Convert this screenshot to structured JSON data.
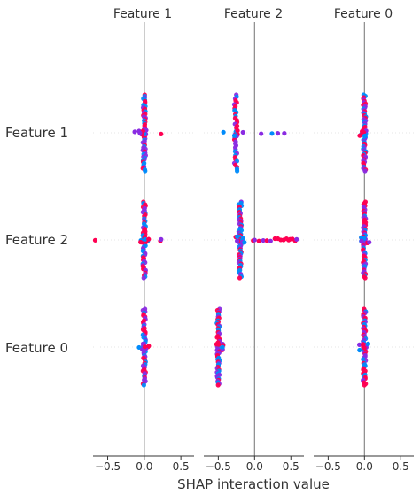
{
  "chart_data": {
    "type": "scatter",
    "title": "",
    "xlabel": "SHAP interaction value",
    "ylabel": "",
    "grid": false,
    "legend": "none",
    "colors": {
      "low": "#008bfb",
      "mid": "#8a2be2",
      "high": "#ff0052",
      "spine": "#888888",
      "text": "#333333"
    },
    "rows": [
      "Feature 1",
      "Feature 2",
      "Feature 0"
    ],
    "panels": [
      {
        "title": "Feature 1",
        "xlim": [
          -0.7,
          0.68
        ],
        "xticks": [
          -0.5,
          0.0,
          0.5
        ],
        "xtick_labels": [
          "−0.5",
          "0.0",
          "0.5"
        ]
      },
      {
        "title": "Feature 2",
        "xlim": [
          -0.7,
          0.68
        ],
        "xticks": [
          -0.5,
          0.0,
          0.5
        ],
        "xtick_labels": [
          "−0.5",
          "0.0",
          "0.5"
        ]
      },
      {
        "title": "Feature 0",
        "xlim": [
          -0.7,
          0.68
        ],
        "xticks": [
          -0.5,
          0.0,
          0.5
        ],
        "xtick_labels": [
          "−0.5",
          "0.0",
          "0.5"
        ]
      }
    ],
    "series": [
      {
        "panel": "Feature 1",
        "row": "Feature 1",
        "center": 0.0,
        "spread": 0.36,
        "count": 60,
        "outliers": [
          [
            -0.13,
            "mid"
          ],
          [
            -0.06,
            "mid"
          ],
          [
            0.23,
            "high"
          ]
        ]
      },
      {
        "panel": "Feature 2",
        "row": "Feature 1",
        "center": -0.26,
        "spread": 0.16,
        "count": 40,
        "outliers": [
          [
            -0.43,
            "low"
          ],
          [
            -0.16,
            "mid"
          ],
          [
            0.09,
            "mid"
          ],
          [
            0.24,
            "low"
          ],
          [
            0.32,
            "mid"
          ],
          [
            0.41,
            "mid"
          ]
        ]
      },
      {
        "panel": "Feature 0",
        "row": "Feature 1",
        "center": 0.0,
        "spread": 0.36,
        "count": 60,
        "outliers": []
      },
      {
        "panel": "Feature 1",
        "row": "Feature 2",
        "center": 0.0,
        "spread": 0.36,
        "count": 60,
        "outliers": [
          [
            -0.67,
            "high"
          ],
          [
            0.06,
            "high"
          ],
          [
            0.22,
            "high"
          ],
          [
            0.23,
            "mid"
          ]
        ]
      },
      {
        "panel": "Feature 2",
        "row": "Feature 2",
        "center": -0.2,
        "spread": 0.36,
        "count": 60,
        "outliers": [
          [
            -0.02,
            "high"
          ],
          [
            0.0,
            "mid"
          ],
          [
            0.06,
            "high"
          ],
          [
            0.12,
            "mid"
          ],
          [
            0.17,
            "high"
          ],
          [
            0.22,
            "mid"
          ],
          [
            0.28,
            "high"
          ],
          [
            0.32,
            "high"
          ],
          [
            0.36,
            "high"
          ],
          [
            0.4,
            "high"
          ],
          [
            0.44,
            "high"
          ],
          [
            0.47,
            "high"
          ],
          [
            0.49,
            "high"
          ],
          [
            0.52,
            "high"
          ],
          [
            0.56,
            "high"
          ],
          [
            0.58,
            "mid"
          ]
        ]
      },
      {
        "panel": "Feature 0",
        "row": "Feature 2",
        "center": 0.0,
        "spread": 0.36,
        "count": 60,
        "outliers": []
      },
      {
        "panel": "Feature 1",
        "row": "Feature 0",
        "center": 0.0,
        "spread": 0.36,
        "count": 60,
        "outliers": []
      },
      {
        "panel": "Feature 2",
        "row": "Feature 0",
        "center": -0.5,
        "spread": 0.36,
        "count": 60,
        "outliers": []
      },
      {
        "panel": "Feature 0",
        "row": "Feature 0",
        "center": 0.0,
        "spread": 0.36,
        "count": 60,
        "outliers": []
      }
    ]
  }
}
